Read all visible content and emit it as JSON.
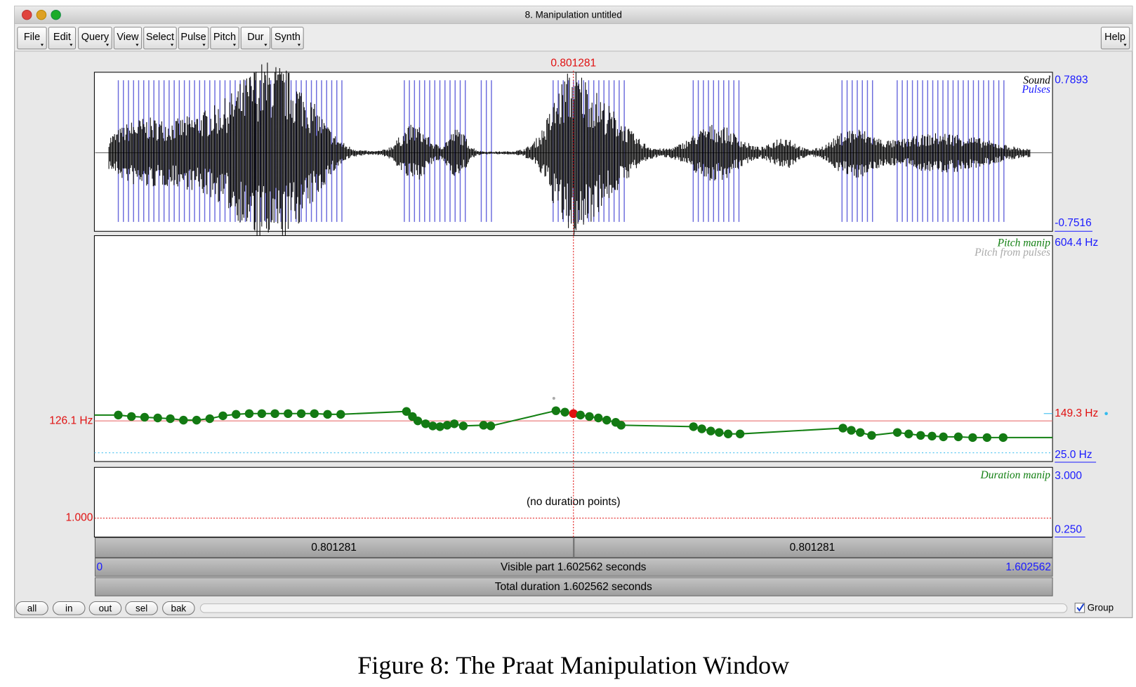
{
  "window": {
    "title": "8. Manipulation untitled"
  },
  "menu": [
    "File",
    "Edit",
    "Query",
    "View",
    "Select",
    "Pulse",
    "Pitch",
    "Dur",
    "Synth"
  ],
  "help": "Help",
  "cursor": {
    "value": 0.801281,
    "label": "0.801281"
  },
  "sound": {
    "name": "Sound",
    "pulses": "Pulses",
    "max": "0.7893",
    "min": "-0.7516"
  },
  "pitch": {
    "name": "Pitch manip",
    "source": "Pitch from pulses",
    "top": "604.4 Hz",
    "bottom": {
      "value": 25,
      "label": "25.0 Hz"
    },
    "cursor_hz": {
      "value": 149.3,
      "label": "149.3 Hz"
    },
    "reference": {
      "value": 126.1,
      "label": "126.1 Hz"
    },
    "points": {
      "times": [
        0.04,
        0.062,
        0.084,
        0.106,
        0.127,
        0.149,
        0.171,
        0.193,
        0.215,
        0.237,
        0.259,
        0.28,
        0.302,
        0.324,
        0.346,
        0.368,
        0.39,
        0.412,
        0.522,
        0.532,
        0.541,
        0.554,
        0.566,
        0.578,
        0.59,
        0.602,
        0.617,
        0.651,
        0.663,
        0.772,
        0.787,
        0.801281,
        0.813,
        0.828,
        0.843,
        0.857,
        0.872,
        0.881,
        1.002,
        1.016,
        1.031,
        1.045,
        1.06,
        1.08,
        1.252,
        1.266,
        1.281,
        1.3,
        1.343,
        1.362,
        1.382,
        1.401,
        1.42,
        1.445,
        1.469,
        1.493,
        1.52
      ],
      "hz": [
        144.6,
        140.0,
        137.7,
        135.4,
        133.1,
        128.5,
        128.5,
        133.1,
        142.3,
        146.9,
        149.2,
        149.2,
        149.2,
        149.2,
        149.2,
        149.2,
        146.9,
        146.9,
        156.1,
        140.0,
        126.2,
        117.0,
        110.1,
        107.8,
        112.4,
        117.0,
        110.1,
        112.4,
        110.1,
        158.4,
        153.8,
        149.2,
        144.6,
        140.0,
        135.4,
        128.5,
        121.6,
        112.4,
        107.8,
        100.9,
        94.0,
        89.4,
        84.8,
        84.8,
        103.2,
        96.3,
        89.4,
        80.2,
        89.4,
        84.8,
        80.2,
        77.9,
        75.6,
        75.6,
        73.3,
        73.3,
        73.3
      ]
    }
  },
  "duration": {
    "name": "Duration manip",
    "top": "3.000",
    "message": "(no duration points)",
    "reference": "1.000",
    "bottom": "0.250"
  },
  "time_bars": {
    "left": "0.801281",
    "right": "0.801281",
    "start": {
      "value": 0,
      "label": "0"
    },
    "visible": "Visible part 1.602562 seconds",
    "end": {
      "value": 1.602562,
      "label": "1.602562"
    },
    "total": "Total duration 1.602562 seconds"
  },
  "buttons": [
    "all",
    "in",
    "out",
    "sel",
    "bak"
  ],
  "group": "Group",
  "caption": "Figure 8: The Praat Manipulation Window"
}
